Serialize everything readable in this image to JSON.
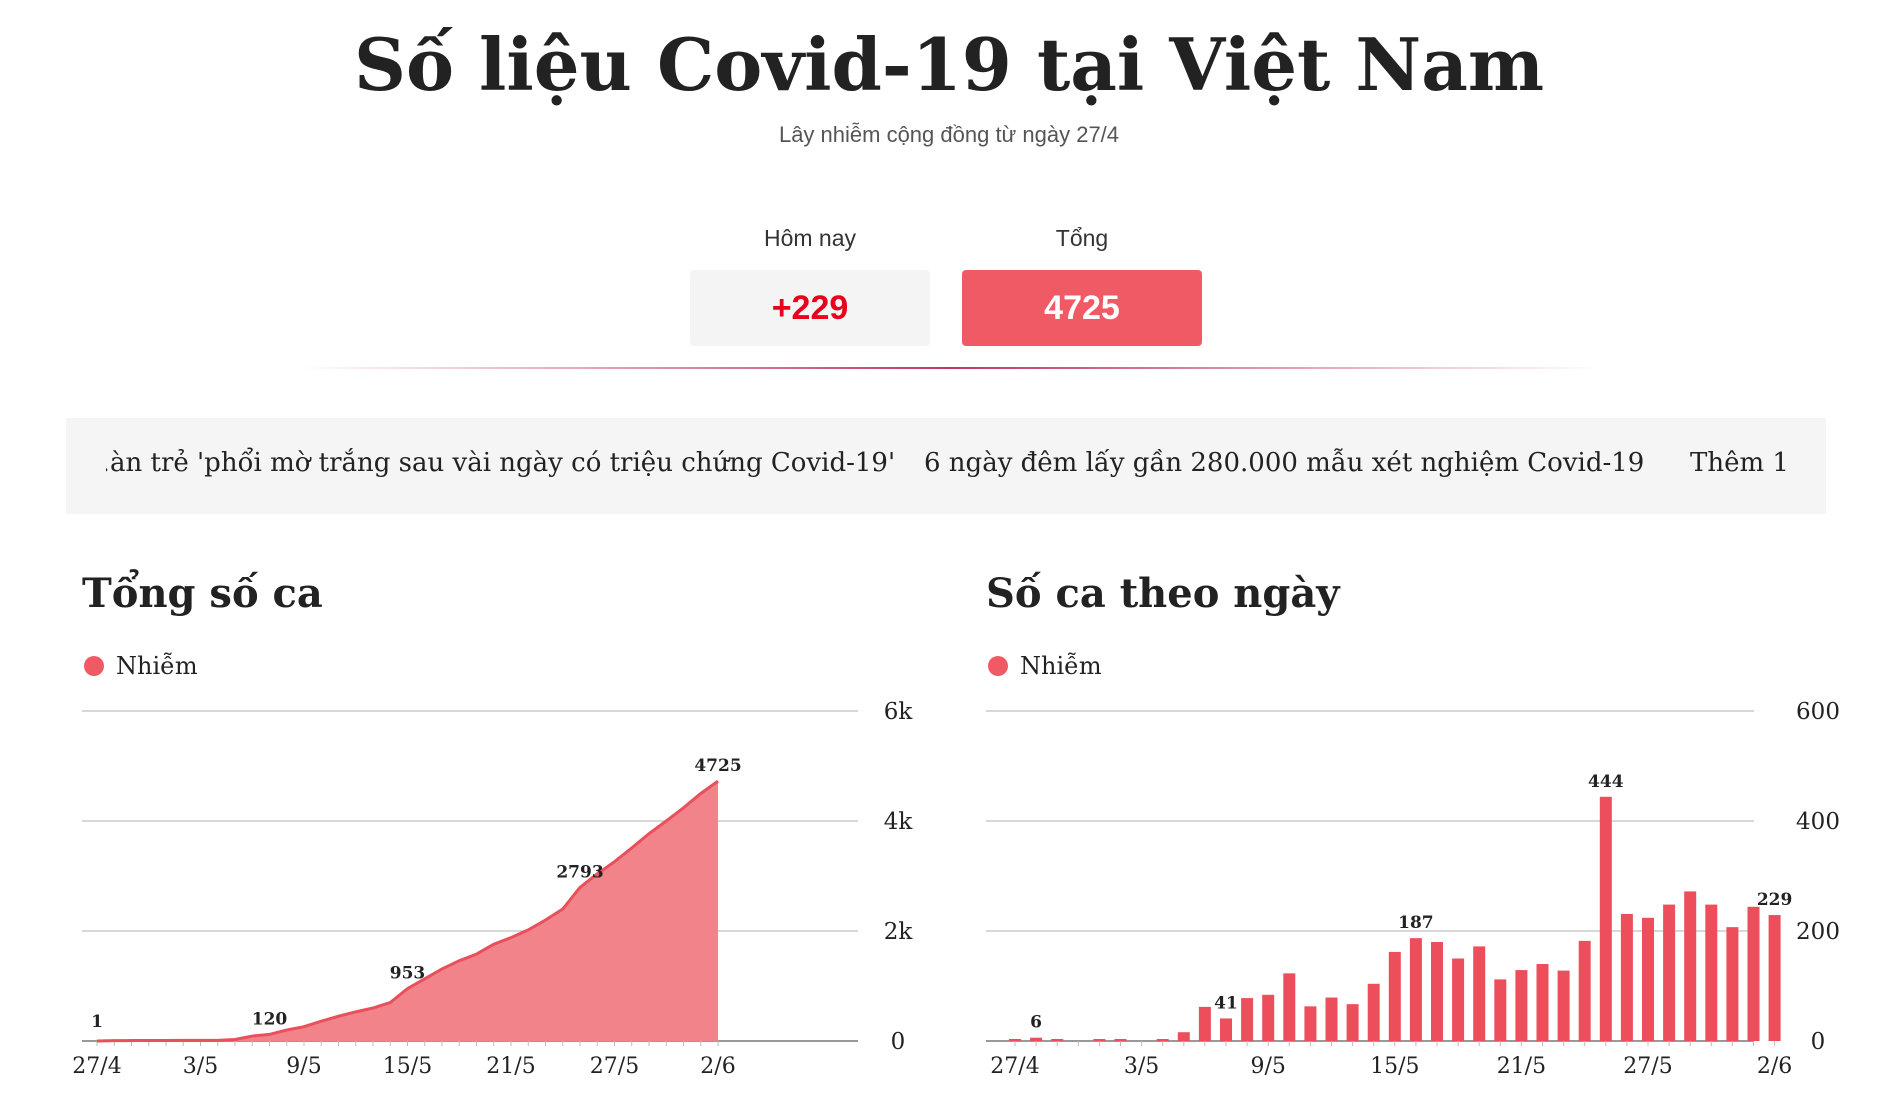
{
  "header": {
    "title": "Số liệu Covid-19 tại Việt Nam",
    "subtitle": "Lây nhiễm cộng đồng từ ngày 27/4"
  },
  "stats": {
    "today_label": "Hôm nay",
    "today_value": "+229",
    "total_label": "Tổng",
    "total_value": "4725"
  },
  "ticker": {
    "items": [
      "…àn trẻ 'phổi mờ trắng sau vài ngày có triệu chứng Covid-19'",
      "6 ngày đêm lấy gần 280.000 mẫu xét nghiệm Covid-19",
      "Thêm 1…"
    ]
  },
  "colors": {
    "accent": "#f05a64",
    "today_text": "#e8001c",
    "area_fill": "#f2838a",
    "area_line": "#e8505b",
    "bar": "#ec4f5b",
    "grid": "#cccccc"
  },
  "chart_data": [
    {
      "type": "area",
      "title": "Tổng số ca",
      "legend": "Nhiễm",
      "legend_placement": "top-left",
      "x": [
        "27/4",
        "28/4",
        "29/4",
        "30/4",
        "1/5",
        "2/5",
        "3/5",
        "4/5",
        "5/5",
        "6/5",
        "7/5",
        "8/5",
        "9/5",
        "10/5",
        "11/5",
        "12/5",
        "13/5",
        "14/5",
        "15/5",
        "16/5",
        "17/5",
        "18/5",
        "19/5",
        "20/5",
        "21/5",
        "22/5",
        "23/5",
        "24/5",
        "25/5",
        "26/5",
        "27/5",
        "28/5",
        "29/5",
        "30/5",
        "31/5",
        "1/6",
        "2/6"
      ],
      "xticks": [
        "27/4",
        "3/5",
        "9/5",
        "15/5",
        "21/5",
        "27/5",
        "2/6"
      ],
      "values": [
        1,
        7,
        8,
        8,
        10,
        11,
        12,
        12,
        28,
        90,
        120,
        200,
        260,
        360,
        450,
        530,
        600,
        700,
        953,
        1130,
        1310,
        1460,
        1580,
        1760,
        1880,
        2020,
        2200,
        2400,
        2793,
        3040,
        3260,
        3510,
        3770,
        4000,
        4240,
        4500,
        4725
      ],
      "data_labels": [
        {
          "x": "27/4",
          "label": "1"
        },
        {
          "x": "7/5",
          "label": "120"
        },
        {
          "x": "15/5",
          "label": "953"
        },
        {
          "x": "25/5",
          "label": "2793"
        },
        {
          "x": "2/6",
          "label": "4725"
        }
      ],
      "ylim": [
        0,
        6000
      ],
      "yticks": [
        0,
        2000,
        4000,
        6000
      ],
      "ytick_labels": [
        "0",
        "2k",
        "4k",
        "6k"
      ],
      "grid": true
    },
    {
      "type": "bar",
      "title": "Số ca theo ngày",
      "legend": "Nhiễm",
      "legend_placement": "top-left",
      "x": [
        "27/4",
        "28/4",
        "29/4",
        "30/4",
        "1/5",
        "2/5",
        "3/5",
        "4/5",
        "5/5",
        "6/5",
        "7/5",
        "8/5",
        "9/5",
        "10/5",
        "11/5",
        "12/5",
        "13/5",
        "14/5",
        "15/5",
        "16/5",
        "17/5",
        "18/5",
        "19/5",
        "20/5",
        "21/5",
        "22/5",
        "23/5",
        "24/5",
        "25/5",
        "26/5",
        "27/5",
        "28/5",
        "29/5",
        "30/5",
        "31/5",
        "1/6",
        "2/6"
      ],
      "xticks": [
        "27/4",
        "3/5",
        "9/5",
        "15/5",
        "21/5",
        "27/5",
        "2/6"
      ],
      "values": [
        1,
        6,
        1,
        0,
        1,
        1,
        0,
        1,
        16,
        62,
        41,
        78,
        84,
        123,
        63,
        79,
        67,
        104,
        162,
        187,
        180,
        150,
        172,
        112,
        129,
        140,
        128,
        182,
        444,
        231,
        224,
        248,
        272,
        248,
        207,
        244,
        229
      ],
      "data_labels": [
        {
          "x": "28/4",
          "label": "6"
        },
        {
          "x": "7/5",
          "label": "41"
        },
        {
          "x": "16/5",
          "label": "187"
        },
        {
          "x": "25/5",
          "label": "444"
        },
        {
          "x": "2/6",
          "label": "229"
        }
      ],
      "ylim": [
        0,
        600
      ],
      "yticks": [
        0,
        200,
        400,
        600
      ],
      "ytick_labels": [
        "0",
        "200",
        "400",
        "600"
      ],
      "grid": true
    }
  ]
}
